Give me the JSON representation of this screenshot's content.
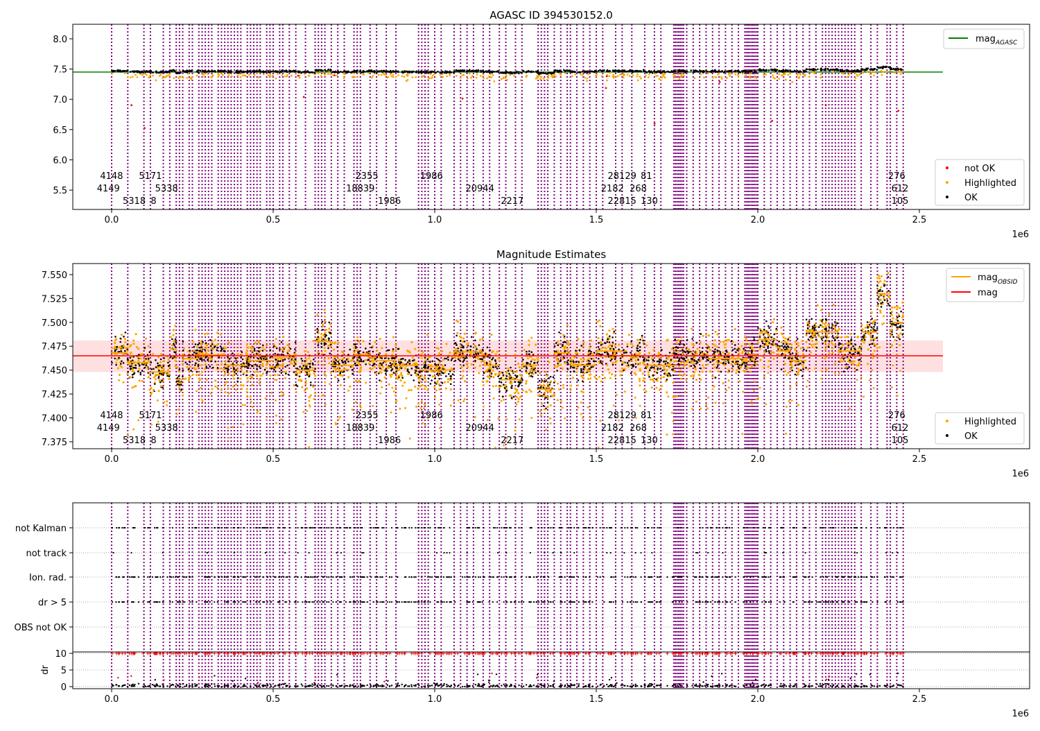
{
  "chart_data": [
    {
      "type": "scatter",
      "title": "AGASC ID 394530152.0",
      "xlabel": "",
      "ylabel": "",
      "x_scale_label": "1e6",
      "xlim": [
        -0.12,
        2.84
      ],
      "ylim": [
        5.18,
        8.24
      ],
      "xticks": [
        "0.0",
        "0.5",
        "1.0",
        "1.5",
        "2.0",
        "2.5"
      ],
      "yticks": [
        "5.5",
        "6.0",
        "6.5",
        "7.0",
        "7.5",
        "8.0"
      ],
      "mag_agasc": 7.45,
      "legend_top": [
        "mag",
        "AGASC"
      ],
      "legend_bottom": [
        "not OK",
        "Highlighted",
        "OK"
      ],
      "colors": {
        "ok": "#000000",
        "highlighted": "#ffa500",
        "not_ok": "#ff0000",
        "agasc": "#008000",
        "boundary": "#800080"
      }
    },
    {
      "type": "scatter",
      "title": "Magnitude Estimates",
      "x_scale_label": "1e6",
      "xlim": [
        -0.12,
        2.84
      ],
      "ylim": [
        7.3677,
        7.5616
      ],
      "xticks": [
        "0.0",
        "0.5",
        "1.0",
        "1.5",
        "2.0",
        "2.5"
      ],
      "yticks": [
        "7.375",
        "7.400",
        "7.425",
        "7.450",
        "7.475",
        "7.500",
        "7.525",
        "7.550"
      ],
      "mag": 7.465,
      "mag_band": [
        7.448,
        7.481
      ],
      "legend_top": [
        [
          "mag",
          "OBSID"
        ],
        [
          "mag",
          ""
        ]
      ],
      "legend_bottom": [
        "Highlighted",
        "OK"
      ],
      "colors": {
        "obsid": "#ffa500",
        "mag": "#ff0000",
        "band": "#ffcccc"
      }
    },
    {
      "type": "scatter",
      "title": "",
      "x_scale_label": "1e6",
      "xlim": [
        -0.12,
        2.84
      ],
      "categories": [
        "not Kalman",
        "not track",
        "Ion. rad.",
        "dr > 5",
        "OBS not OK"
      ],
      "dr_ylabel": "dr",
      "dr_yticks": [
        "0",
        "5",
        "10"
      ],
      "dr_ylim": [
        -0.5,
        10.5
      ],
      "xticks": [
        "0.0",
        "0.5",
        "1.0",
        "1.5",
        "2.0",
        "2.5"
      ]
    }
  ],
  "observations": [
    [
      0.0,
      0.05,
      7.468
    ],
    [
      0.05,
      0.12,
      7.458
    ],
    [
      0.12,
      0.18,
      7.448
    ],
    [
      0.18,
      0.2,
      7.472
    ],
    [
      0.2,
      0.22,
      7.44
    ],
    [
      0.22,
      0.27,
      7.462
    ],
    [
      0.27,
      0.35,
      7.466
    ],
    [
      0.35,
      0.42,
      7.455
    ],
    [
      0.42,
      0.5,
      7.46
    ],
    [
      0.5,
      0.57,
      7.463
    ],
    [
      0.57,
      0.63,
      7.45
    ],
    [
      0.63,
      0.68,
      7.48
    ],
    [
      0.68,
      0.75,
      7.455
    ],
    [
      0.75,
      0.8,
      7.466
    ],
    [
      0.8,
      0.88,
      7.46
    ],
    [
      0.88,
      0.95,
      7.455
    ],
    [
      0.95,
      1.06,
      7.45
    ],
    [
      1.06,
      1.15,
      7.469
    ],
    [
      1.15,
      1.2,
      7.455
    ],
    [
      1.2,
      1.27,
      7.44
    ],
    [
      1.27,
      1.32,
      7.455
    ],
    [
      1.32,
      1.37,
      7.43
    ],
    [
      1.37,
      1.42,
      7.468
    ],
    [
      1.42,
      1.5,
      7.455
    ],
    [
      1.5,
      1.58,
      7.47
    ],
    [
      1.58,
      1.65,
      7.465
    ],
    [
      1.65,
      1.74,
      7.455
    ],
    [
      1.74,
      1.85,
      7.465
    ],
    [
      1.85,
      1.97,
      7.462
    ],
    [
      1.97,
      2.0,
      7.466
    ],
    [
      2.0,
      2.06,
      7.482
    ],
    [
      2.06,
      2.1,
      7.47
    ],
    [
      2.1,
      2.15,
      7.46
    ],
    [
      2.15,
      2.25,
      7.49
    ],
    [
      2.25,
      2.32,
      7.47
    ],
    [
      2.32,
      2.37,
      7.49
    ],
    [
      2.37,
      2.41,
      7.53
    ],
    [
      2.41,
      2.45,
      7.5
    ]
  ],
  "obs_boundaries": [
    0.0,
    0.05,
    0.1,
    0.12,
    0.16,
    0.18,
    0.2,
    0.21,
    0.22,
    0.24,
    0.25,
    0.27,
    0.28,
    0.29,
    0.3,
    0.31,
    0.33,
    0.34,
    0.35,
    0.36,
    0.37,
    0.38,
    0.39,
    0.4,
    0.42,
    0.43,
    0.44,
    0.45,
    0.46,
    0.48,
    0.49,
    0.5,
    0.52,
    0.53,
    0.55,
    0.57,
    0.6,
    0.63,
    0.64,
    0.65,
    0.66,
    0.68,
    0.7,
    0.72,
    0.75,
    0.76,
    0.77,
    0.8,
    0.82,
    0.85,
    0.88,
    0.95,
    0.96,
    0.97,
    0.98,
    1.0,
    1.02,
    1.06,
    1.08,
    1.1,
    1.12,
    1.15,
    1.17,
    1.2,
    1.22,
    1.25,
    1.27,
    1.32,
    1.33,
    1.34,
    1.35,
    1.37,
    1.39,
    1.41,
    1.42,
    1.44,
    1.46,
    1.48,
    1.5,
    1.52,
    1.56,
    1.58,
    1.61,
    1.65,
    1.68,
    1.7,
    1.74,
    1.745,
    1.75,
    1.755,
    1.76,
    1.765,
    1.77,
    1.78,
    1.8,
    1.82,
    1.84,
    1.86,
    1.88,
    1.9,
    1.92,
    1.94,
    1.96,
    1.965,
    1.97,
    1.975,
    1.98,
    1.985,
    1.99,
    1.995,
    2.0,
    2.02,
    2.04,
    2.06,
    2.08,
    2.1,
    2.12,
    2.14,
    2.16,
    2.18,
    2.2,
    2.21,
    2.22,
    2.23,
    2.24,
    2.25,
    2.26,
    2.27,
    2.28,
    2.29,
    2.3,
    2.32,
    2.35,
    2.37,
    2.4,
    2.41,
    2.43,
    2.45
  ],
  "obsid_labels": [
    {
      "x": 0.0,
      "row": 0,
      "label": "4148"
    },
    {
      "x": -0.01,
      "row": 1,
      "label": "4149"
    },
    {
      "x": 0.07,
      "row": 2,
      "label": "5318"
    },
    {
      "x": 0.12,
      "row": 0,
      "label": "5171"
    },
    {
      "x": 0.17,
      "row": 1,
      "label": "5338"
    },
    {
      "x": 0.13,
      "row": 2,
      "label": "8"
    },
    {
      "x": 0.86,
      "row": 2,
      "label": "1986"
    },
    {
      "x": 0.77,
      "row": 1,
      "label": "18839"
    },
    {
      "x": 0.79,
      "row": 0,
      "label": "2355"
    },
    {
      "x": 0.99,
      "row": 0,
      "label": "1986"
    },
    {
      "x": 1.24,
      "row": 2,
      "label": "2217"
    },
    {
      "x": 1.14,
      "row": 1,
      "label": "20944"
    },
    {
      "x": 1.58,
      "row": 2,
      "label": "22815"
    },
    {
      "x": 1.62,
      "row": 2,
      "label": "130"
    },
    {
      "x": 1.55,
      "row": 1,
      "label": "2182"
    },
    {
      "x": 1.63,
      "row": 1,
      "label": "268"
    },
    {
      "x": 1.58,
      "row": 0,
      "label": "28129"
    },
    {
      "x": 1.65,
      "row": 0,
      "label": "81"
    },
    {
      "x": 2.44,
      "row": 2,
      "label": "105"
    },
    {
      "x": 2.44,
      "row": 1,
      "label": "612"
    },
    {
      "x": 2.43,
      "row": 0,
      "label": "276"
    }
  ]
}
